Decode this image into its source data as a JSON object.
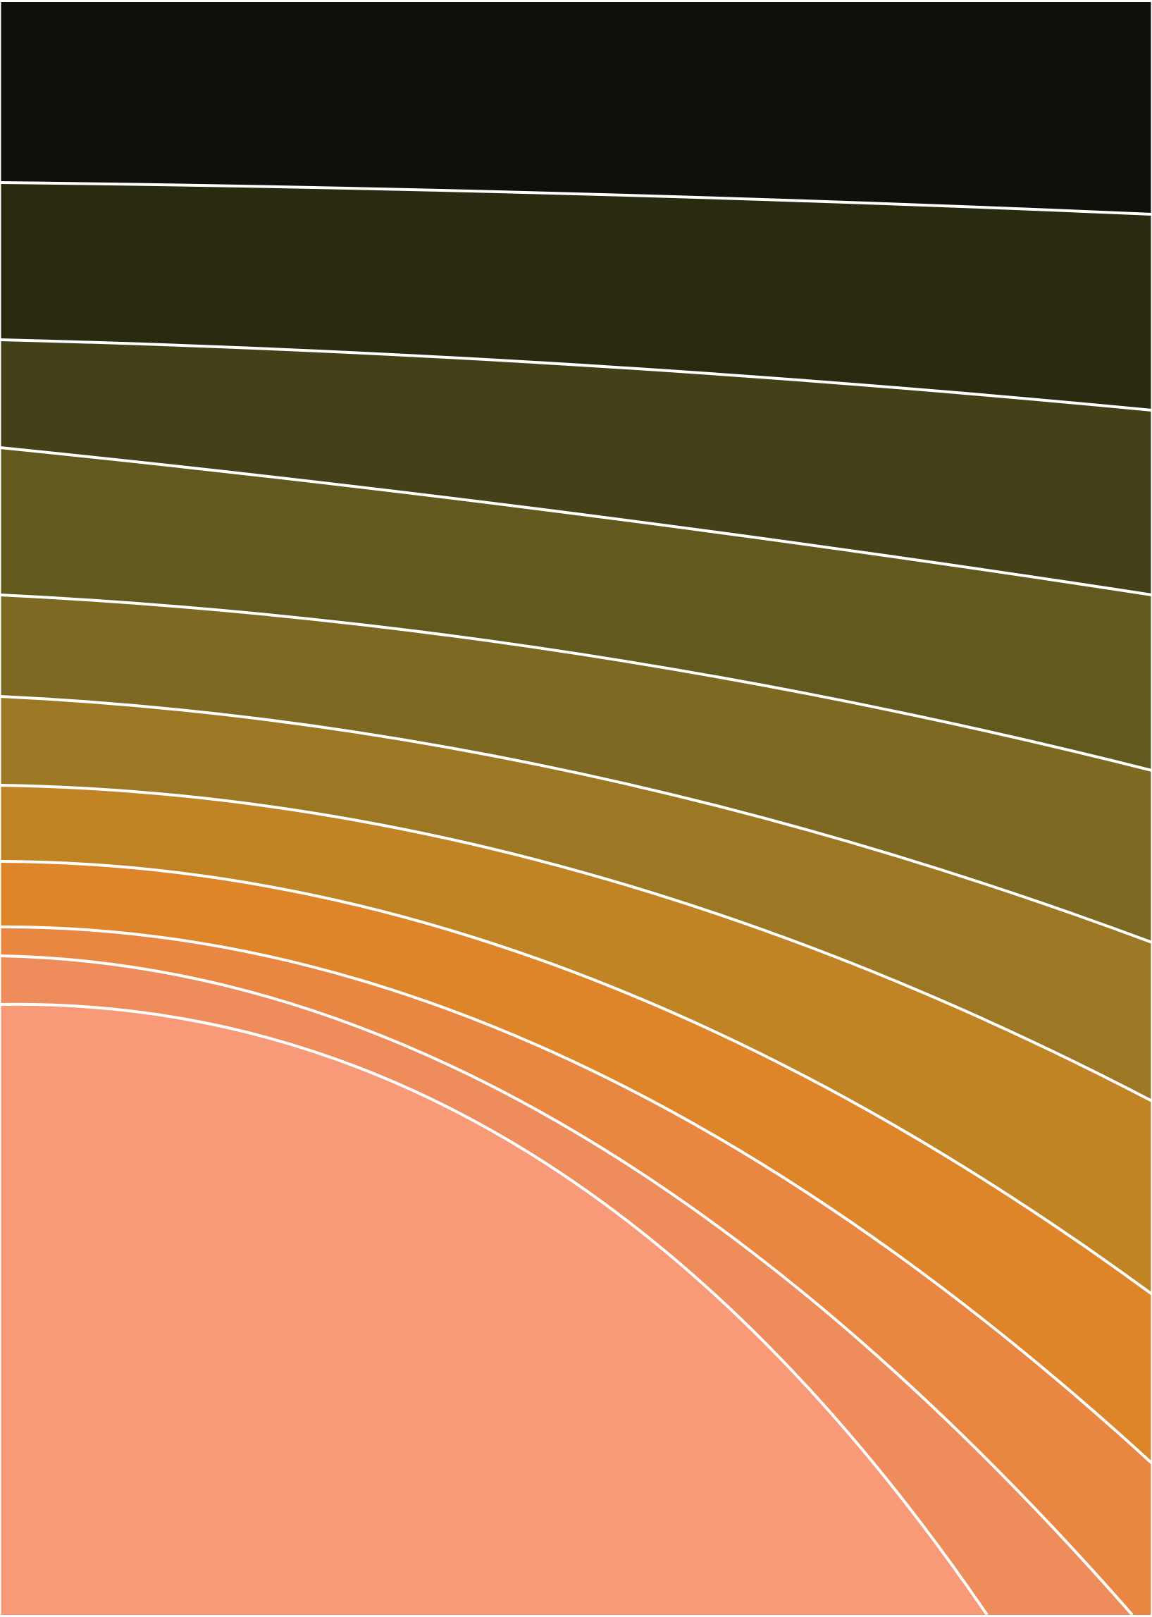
{
  "artwork": {
    "subject": "concentric-arc-color-bands",
    "bands": [
      {
        "id": "band-1",
        "color": "#0e1009"
      },
      {
        "id": "band-2",
        "color": "#2a2a11"
      },
      {
        "id": "band-3",
        "color": "#444118"
      },
      {
        "id": "band-4",
        "color": "#62591f"
      },
      {
        "id": "band-5",
        "color": "#7e6922"
      },
      {
        "id": "band-6",
        "color": "#9c7824"
      },
      {
        "id": "band-7",
        "color": "#c08425"
      },
      {
        "id": "band-8",
        "color": "#de8429"
      },
      {
        "id": "band-9",
        "color": "#e98742"
      },
      {
        "id": "band-10",
        "color": "#ee8c5b"
      },
      {
        "id": "band-11",
        "color": "#f89978"
      }
    ],
    "divider_color": "#ffffff",
    "edge_color": "#ffffff"
  }
}
